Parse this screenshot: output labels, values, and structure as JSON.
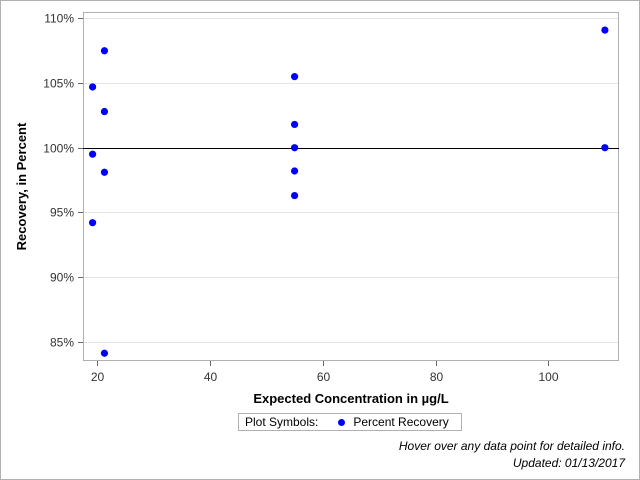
{
  "chart_data": {
    "type": "scatter",
    "title": "",
    "xlabel": "Expected Concentration in µg/L",
    "ylabel": "Recovery, in Percent",
    "xlim": [
      17.5,
      112.5
    ],
    "ylim": [
      83.5,
      110.5
    ],
    "x_ticks": [
      20,
      40,
      60,
      80,
      100
    ],
    "y_ticks": [
      85,
      90,
      95,
      100,
      105,
      110
    ],
    "y_tick_suffix": "%",
    "grid": "horizontal",
    "reference_line": 100,
    "legend": {
      "title": "Plot Symbols:",
      "position": "bottom-center"
    },
    "series": [
      {
        "name": "Percent Recovery",
        "color": "#0000ff",
        "points": [
          {
            "x": 19.2,
            "y": 104.7
          },
          {
            "x": 19.2,
            "y": 99.5
          },
          {
            "x": 19.2,
            "y": 94.2
          },
          {
            "x": 21.3,
            "y": 107.5
          },
          {
            "x": 21.3,
            "y": 102.8
          },
          {
            "x": 21.3,
            "y": 98.1
          },
          {
            "x": 21.3,
            "y": 84.1
          },
          {
            "x": 55,
            "y": 105.5
          },
          {
            "x": 55,
            "y": 101.8
          },
          {
            "x": 55,
            "y": 100.0
          },
          {
            "x": 55,
            "y": 98.2
          },
          {
            "x": 55,
            "y": 96.3
          },
          {
            "x": 110,
            "y": 109.1
          },
          {
            "x": 110,
            "y": 100.0
          }
        ]
      }
    ]
  },
  "footer": {
    "hover_note": "Hover over any data point for detailed info.",
    "updated": "Updated: 01/13/2017"
  }
}
